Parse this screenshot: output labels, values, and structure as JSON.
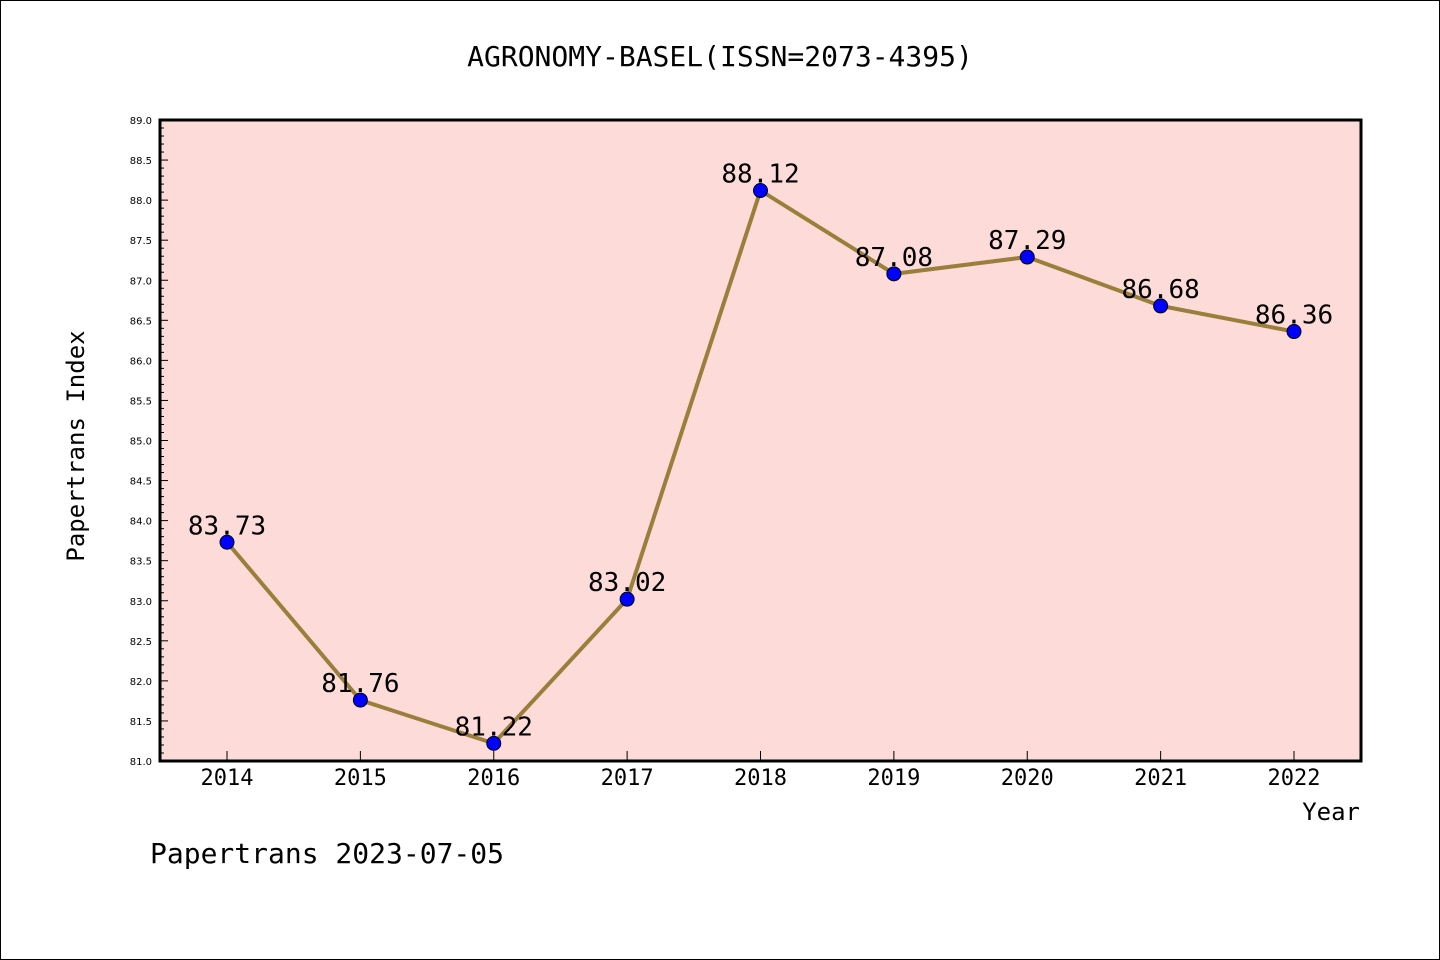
{
  "chart_data": {
    "type": "line",
    "title": "AGRONOMY-BASEL(ISSN=2073-4395)",
    "xlabel": "Year",
    "ylabel": "Papertrans Index",
    "categories": [
      "2014",
      "2015",
      "2016",
      "2017",
      "2018",
      "2019",
      "2020",
      "2021",
      "2022"
    ],
    "values": [
      83.73,
      81.76,
      81.22,
      83.02,
      88.12,
      87.08,
      87.29,
      86.68,
      86.36
    ],
    "data_labels": [
      "83.73",
      "81.76",
      "81.22",
      "83.02",
      "88.12",
      "87.08",
      "87.29",
      "86.68",
      "86.36"
    ],
    "ylim": [
      81.0,
      89.0
    ],
    "y_ticks": [
      "81.0",
      "81.5",
      "82.0",
      "82.5",
      "83.0",
      "83.5",
      "84.0",
      "84.5",
      "85.0",
      "85.5",
      "86.0",
      "86.5",
      "87.0",
      "87.5",
      "88.0",
      "88.5",
      "89.0"
    ],
    "grid": false,
    "colors": {
      "plot_background": "#fddbd9",
      "line": "#9a7f3a",
      "marker": "#0000ff"
    }
  },
  "footer": {
    "text": "Papertrans 2023-07-05"
  }
}
